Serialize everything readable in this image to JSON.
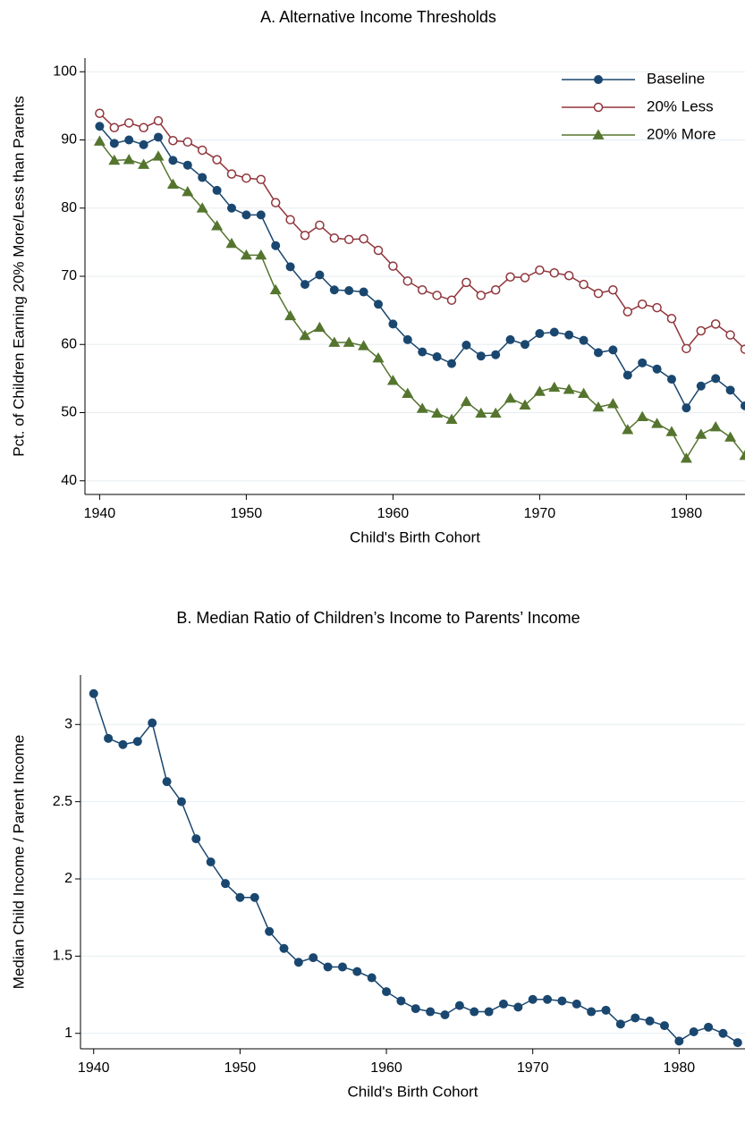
{
  "chart_data": [
    {
      "type": "line",
      "title": "A. Alternative Income Thresholds",
      "xlabel": "Child's Birth Cohort",
      "ylabel": "Pct. of Children Earning 20% More/Less than Parents",
      "x": [
        1940,
        1941,
        1942,
        1943,
        1944,
        1945,
        1946,
        1947,
        1948,
        1949,
        1950,
        1951,
        1952,
        1953,
        1954,
        1955,
        1956,
        1957,
        1958,
        1959,
        1960,
        1961,
        1962,
        1963,
        1964,
        1965,
        1966,
        1967,
        1968,
        1969,
        1970,
        1971,
        1972,
        1973,
        1974,
        1975,
        1976,
        1977,
        1978,
        1979,
        1980,
        1981,
        1982,
        1983,
        1984
      ],
      "series": [
        {
          "name": "Baseline",
          "color": "#1a476f",
          "marker": "filled-circle",
          "values": [
            92,
            89.5,
            90,
            89.3,
            90.4,
            87,
            86.3,
            84.5,
            82.6,
            80,
            79,
            79,
            74.5,
            71.4,
            68.8,
            70.2,
            68,
            67.9,
            67.7,
            65.9,
            63,
            60.7,
            58.9,
            58.2,
            57.2,
            59.9,
            58.3,
            58.5,
            60.7,
            60,
            61.6,
            61.8,
            61.4,
            60.6,
            58.8,
            59.2,
            55.5,
            57.3,
            56.4,
            54.9,
            50.7,
            53.9,
            55,
            53.3,
            51
          ]
        },
        {
          "name": "20% Less",
          "color": "#90353b",
          "marker": "hollow-circle",
          "values": [
            93.9,
            91.8,
            92.5,
            91.8,
            92.8,
            89.9,
            89.7,
            88.5,
            87.1,
            85,
            84.4,
            84.2,
            80.8,
            78.3,
            76,
            77.5,
            75.6,
            75.4,
            75.5,
            73.8,
            71.5,
            69.3,
            68,
            67.2,
            66.5,
            69.1,
            67.2,
            68,
            69.9,
            69.8,
            70.9,
            70.5,
            70.1,
            68.8,
            67.5,
            68,
            64.8,
            65.9,
            65.4,
            63.8,
            59.4,
            62,
            63,
            61.4,
            59.3
          ]
        },
        {
          "name": "20% More",
          "color": "#55752f",
          "marker": "triangle",
          "values": [
            89.8,
            87,
            87.1,
            86.4,
            87.6,
            83.5,
            82.4,
            80,
            77.4,
            74.8,
            73.1,
            73.1,
            68,
            64.2,
            61.3,
            62.5,
            60.3,
            60.3,
            59.8,
            58,
            54.7,
            52.8,
            50.6,
            49.9,
            49,
            51.6,
            49.9,
            49.9,
            52.1,
            51.1,
            53.1,
            53.7,
            53.4,
            52.8,
            50.8,
            51.3,
            47.5,
            49.4,
            48.4,
            47.2,
            43.3,
            46.8,
            47.9,
            46.4,
            43.7
          ]
        }
      ],
      "xlim": [
        1939,
        1984
      ],
      "xticks": [
        1940,
        1950,
        1960,
        1970,
        1980
      ],
      "ylim": [
        38,
        102
      ],
      "yticks": [
        40,
        50,
        60,
        70,
        80,
        90,
        100
      ],
      "grid": true,
      "legend": "upper right"
    },
    {
      "type": "line",
      "title": "B. Median Ratio of Children’s Income to Parents’ Income",
      "xlabel": "Child's Birth Cohort",
      "ylabel": "Median Child Income / Parent Income",
      "x": [
        1940,
        1941,
        1942,
        1943,
        1944,
        1945,
        1946,
        1947,
        1948,
        1949,
        1950,
        1951,
        1952,
        1953,
        1954,
        1955,
        1956,
        1957,
        1958,
        1959,
        1960,
        1961,
        1962,
        1963,
        1964,
        1965,
        1966,
        1967,
        1968,
        1969,
        1970,
        1971,
        1972,
        1973,
        1974,
        1975,
        1976,
        1977,
        1978,
        1979,
        1980,
        1981,
        1982,
        1983,
        1984
      ],
      "series": [
        {
          "color": "#1a476f",
          "marker": "filled-circle",
          "values": [
            3.2,
            2.91,
            2.87,
            2.89,
            3.01,
            2.63,
            2.5,
            2.26,
            2.11,
            1.97,
            1.88,
            1.88,
            1.66,
            1.55,
            1.46,
            1.49,
            1.43,
            1.43,
            1.4,
            1.36,
            1.27,
            1.21,
            1.16,
            1.14,
            1.12,
            1.18,
            1.14,
            1.14,
            1.19,
            1.17,
            1.22,
            1.22,
            1.21,
            1.19,
            1.14,
            1.15,
            1.06,
            1.1,
            1.08,
            1.05,
            0.95,
            1.01,
            1.04,
            1,
            0.94
          ]
        }
      ],
      "xlim": [
        1939.1,
        1984.5
      ],
      "xticks": [
        1940,
        1950,
        1960,
        1970,
        1980
      ],
      "ylim": [
        0.9,
        3.32
      ],
      "yticks": [
        1,
        1.5,
        2,
        2.5,
        3
      ],
      "grid": true
    }
  ]
}
